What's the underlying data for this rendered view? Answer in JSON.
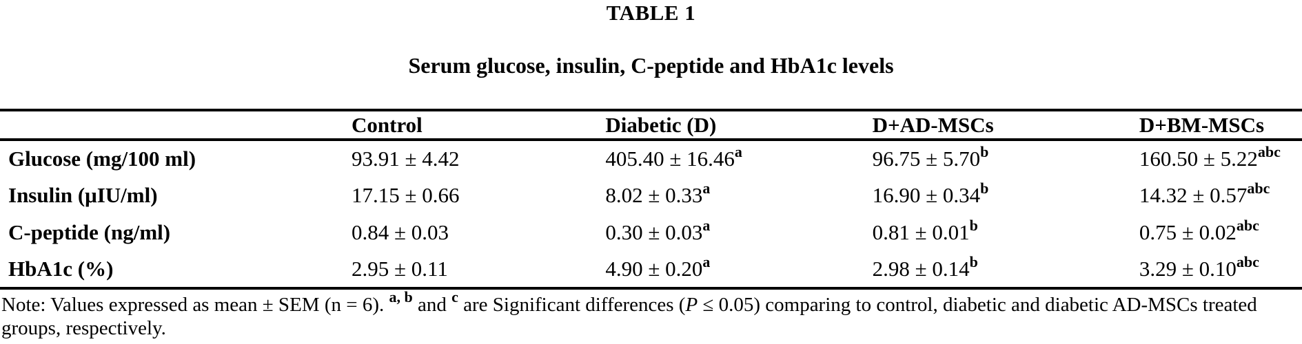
{
  "table": {
    "label": "TABLE 1",
    "title": "Serum glucose, insulin, C-peptide and HbA1c levels",
    "columns": [
      "",
      "Control",
      "Diabetic (D)",
      "D+AD-MSCs",
      "D+BM-MSCs"
    ],
    "rows": [
      {
        "label": "Glucose (mg/100 ml)",
        "values": [
          {
            "text": "93.91 ± 4.42",
            "sup": ""
          },
          {
            "text": "405.40 ± 16.46",
            "sup": "a"
          },
          {
            "text": "96.75 ± 5.70",
            "sup": "b"
          },
          {
            "text": "160.50 ± 5.22",
            "sup": "abc"
          }
        ]
      },
      {
        "label": "Insulin (μIU/ml)",
        "values": [
          {
            "text": "17.15 ± 0.66",
            "sup": ""
          },
          {
            "text": "8.02 ± 0.33",
            "sup": "a"
          },
          {
            "text": "16.90 ± 0.34",
            "sup": "b"
          },
          {
            "text": "14.32 ± 0.57",
            "sup": "abc"
          }
        ]
      },
      {
        "label": "C-peptide (ng/ml)",
        "values": [
          {
            "text": "0.84 ± 0.03",
            "sup": ""
          },
          {
            "text": "0.30 ± 0.03",
            "sup": "a"
          },
          {
            "text": "0.81 ± 0.01",
            "sup": "b"
          },
          {
            "text": "0.75 ± 0.02",
            "sup": "abc"
          }
        ]
      },
      {
        "label": "HbA1c (%)",
        "values": [
          {
            "text": "2.95 ± 0.11",
            "sup": ""
          },
          {
            "text": "4.90 ± 0.20",
            "sup": "a"
          },
          {
            "text": "2.98 ± 0.14",
            "sup": "b"
          },
          {
            "text": "3.29 ± 0.10",
            "sup": "abc"
          }
        ]
      }
    ],
    "note": {
      "segments": [
        {
          "text": "Note: Values expressed as mean ± SEM (n = 6). ",
          "style": "normal"
        },
        {
          "text": "a, b",
          "style": "sup"
        },
        {
          "text": " and ",
          "style": "normal"
        },
        {
          "text": "c",
          "style": "sup"
        },
        {
          "text": " are Significant differences (",
          "style": "normal"
        },
        {
          "text": "P",
          "style": "italic"
        },
        {
          "text": " ≤ 0.05) comparing to control, diabetic and diabetic AD-MSCs treated",
          "style": "normal"
        },
        {
          "text": "",
          "style": "break"
        },
        {
          "text": "groups, respectively.",
          "style": "normal"
        }
      ]
    }
  }
}
